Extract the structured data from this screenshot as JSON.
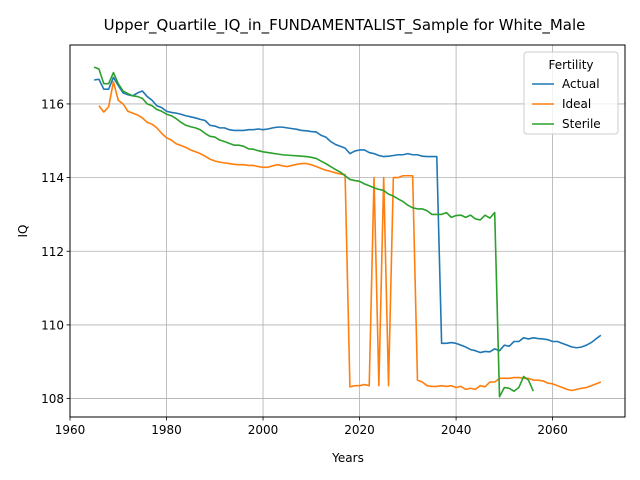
{
  "chart_data": {
    "type": "line",
    "title": "Upper_Quartile_IQ_in_FUNDAMENTALIST_Sample for White_Male",
    "xlabel": "Years",
    "ylabel": "IQ",
    "xlim": [
      1960,
      2075
    ],
    "ylim": [
      107.5,
      117.6
    ],
    "xticks": [
      1960,
      1980,
      2000,
      2020,
      2040,
      2060
    ],
    "yticks": [
      108,
      110,
      112,
      114,
      116
    ],
    "grid": true,
    "legend": {
      "title": "Fertility",
      "placement": "top-right"
    },
    "series": [
      {
        "name": "Actual",
        "color": "#1f77b4",
        "x": [
          1965,
          1966,
          1967,
          1968,
          1969,
          1970,
          1971,
          1972,
          1973,
          1974,
          1975,
          1976,
          1977,
          1978,
          1979,
          1980,
          1981,
          1982,
          1983,
          1984,
          1985,
          1986,
          1987,
          1988,
          1989,
          1990,
          1991,
          1992,
          1993,
          1994,
          1995,
          1996,
          1997,
          1998,
          1999,
          2000,
          2001,
          2002,
          2003,
          2004,
          2005,
          2006,
          2007,
          2008,
          2009,
          2010,
          2011,
          2012,
          2013,
          2014,
          2015,
          2016,
          2017,
          2018,
          2019,
          2020,
          2021,
          2022,
          2023,
          2024,
          2025,
          2026,
          2027,
          2028,
          2029,
          2030,
          2031,
          2032,
          2033,
          2034,
          2035,
          2036,
          2037,
          2038,
          2039,
          2040,
          2041,
          2042,
          2043,
          2044,
          2045,
          2046,
          2047,
          2048,
          2049,
          2050,
          2051,
          2052,
          2053,
          2054,
          2055,
          2056,
          2057,
          2058,
          2059,
          2060,
          2061,
          2062,
          2063,
          2064,
          2065,
          2066,
          2067,
          2068,
          2069,
          2070
        ],
        "values": [
          116.65,
          116.67,
          116.4,
          116.4,
          116.72,
          116.5,
          116.3,
          116.25,
          116.22,
          116.3,
          116.35,
          116.2,
          116.1,
          115.95,
          115.9,
          115.8,
          115.77,
          115.75,
          115.72,
          115.68,
          115.65,
          115.62,
          115.58,
          115.55,
          115.42,
          115.4,
          115.35,
          115.35,
          115.3,
          115.28,
          115.28,
          115.28,
          115.3,
          115.3,
          115.32,
          115.3,
          115.32,
          115.35,
          115.37,
          115.37,
          115.35,
          115.33,
          115.31,
          115.28,
          115.27,
          115.25,
          115.24,
          115.15,
          115.1,
          114.98,
          114.9,
          114.85,
          114.8,
          114.65,
          114.72,
          114.75,
          114.75,
          114.68,
          114.65,
          114.6,
          114.57,
          114.58,
          114.6,
          114.62,
          114.62,
          114.65,
          114.62,
          114.62,
          114.58,
          114.57,
          114.57,
          114.57,
          109.5,
          109.5,
          109.52,
          109.5,
          109.45,
          109.4,
          109.33,
          109.3,
          109.25,
          109.28,
          109.27,
          109.35,
          109.3,
          109.45,
          109.42,
          109.55,
          109.55,
          109.65,
          109.62,
          109.65,
          109.63,
          109.62,
          109.6,
          109.55,
          109.55,
          109.5,
          109.45,
          109.4,
          109.38,
          109.4,
          109.45,
          109.52,
          109.62,
          109.72
        ]
      },
      {
        "name": "Ideal",
        "color": "#ff7f0e",
        "x": [
          1966,
          1967,
          1968,
          1969,
          1970,
          1971,
          1972,
          1973,
          1974,
          1975,
          1976,
          1977,
          1978,
          1979,
          1980,
          1981,
          1982,
          1983,
          1984,
          1985,
          1986,
          1987,
          1988,
          1989,
          1990,
          1991,
          1992,
          1993,
          1994,
          1995,
          1996,
          1997,
          1998,
          1999,
          2000,
          2001,
          2002,
          2003,
          2004,
          2005,
          2006,
          2007,
          2008,
          2009,
          2010,
          2011,
          2012,
          2013,
          2014,
          2015,
          2016,
          2017,
          2018,
          2019,
          2020,
          2021,
          2022,
          2023,
          2024,
          2025,
          2026,
          2027,
          2028,
          2029,
          2030,
          2031,
          2032,
          2033,
          2034,
          2035,
          2036,
          2037,
          2038,
          2039,
          2040,
          2041,
          2042,
          2043,
          2044,
          2045,
          2046,
          2047,
          2048,
          2049,
          2050,
          2051,
          2052,
          2053,
          2054,
          2055,
          2056,
          2057,
          2058,
          2059,
          2060,
          2061,
          2062,
          2063,
          2064,
          2065,
          2066,
          2067,
          2068,
          2069,
          2070
        ],
        "values": [
          115.95,
          115.78,
          115.92,
          116.6,
          116.1,
          116.0,
          115.8,
          115.75,
          115.7,
          115.62,
          115.5,
          115.45,
          115.35,
          115.2,
          115.08,
          115.02,
          114.92,
          114.87,
          114.82,
          114.75,
          114.7,
          114.65,
          114.58,
          114.5,
          114.45,
          114.42,
          114.4,
          114.38,
          114.36,
          114.35,
          114.35,
          114.33,
          114.33,
          114.3,
          114.28,
          114.28,
          114.32,
          114.35,
          114.32,
          114.3,
          114.33,
          114.36,
          114.38,
          114.38,
          114.35,
          114.3,
          114.25,
          114.2,
          114.17,
          114.13,
          114.1,
          114.08,
          108.32,
          108.35,
          108.35,
          108.38,
          108.35,
          114.0,
          108.35,
          114.0,
          108.35,
          114.0,
          114.0,
          114.05,
          114.05,
          114.05,
          108.5,
          108.45,
          108.35,
          108.33,
          108.33,
          108.35,
          108.33,
          108.35,
          108.3,
          108.33,
          108.25,
          108.28,
          108.25,
          108.35,
          108.32,
          108.45,
          108.45,
          108.55,
          108.55,
          108.55,
          108.57,
          108.57,
          108.55,
          108.55,
          108.5,
          108.5,
          108.48,
          108.42,
          108.4,
          108.35,
          108.3,
          108.25,
          108.22,
          108.25,
          108.28,
          108.3,
          108.35,
          108.4,
          108.45
        ],
        "note": ""
      },
      {
        "name": "Sterile",
        "color": "#2ca02c",
        "x": [
          1965,
          1966,
          1967,
          1968,
          1969,
          1970,
          1971,
          1972,
          1973,
          1974,
          1975,
          1976,
          1977,
          1978,
          1979,
          1980,
          1981,
          1982,
          1983,
          1984,
          1985,
          1986,
          1987,
          1988,
          1989,
          1990,
          1991,
          1992,
          1993,
          1994,
          1995,
          1996,
          1997,
          1998,
          1999,
          2000,
          2001,
          2002,
          2003,
          2004,
          2005,
          2006,
          2007,
          2008,
          2009,
          2010,
          2011,
          2012,
          2013,
          2014,
          2015,
          2016,
          2017,
          2018,
          2019,
          2020,
          2021,
          2022,
          2023,
          2024,
          2025,
          2026,
          2027,
          2028,
          2029,
          2030,
          2031,
          2032,
          2033,
          2034,
          2035,
          2036,
          2037,
          2038,
          2039,
          2040,
          2041,
          2042,
          2043,
          2044,
          2045,
          2046,
          2047,
          2048,
          2049,
          2050,
          2051,
          2052,
          2053,
          2054,
          2055,
          2056
        ],
        "values": [
          117.0,
          116.95,
          116.55,
          116.55,
          116.85,
          116.55,
          116.35,
          116.28,
          116.22,
          116.2,
          116.15,
          116.0,
          115.95,
          115.85,
          115.8,
          115.72,
          115.68,
          115.6,
          115.5,
          115.42,
          115.38,
          115.35,
          115.3,
          115.2,
          115.12,
          115.1,
          115.02,
          114.98,
          114.93,
          114.88,
          114.88,
          114.85,
          114.78,
          114.77,
          114.73,
          114.7,
          114.68,
          114.66,
          114.64,
          114.62,
          114.61,
          114.6,
          114.59,
          114.58,
          114.57,
          114.55,
          114.52,
          114.45,
          114.38,
          114.3,
          114.22,
          114.15,
          114.05,
          113.95,
          113.92,
          113.9,
          113.83,
          113.78,
          113.72,
          113.68,
          113.65,
          113.55,
          113.5,
          113.42,
          113.35,
          113.25,
          113.18,
          113.15,
          113.15,
          113.1,
          113.0,
          113.0,
          113.0,
          113.05,
          112.92,
          112.97,
          112.98,
          112.92,
          112.98,
          112.88,
          112.85,
          112.98,
          112.9,
          113.05,
          108.05,
          108.3,
          108.28,
          108.2,
          108.3,
          108.6,
          108.5,
          108.2
        ]
      }
    ]
  }
}
